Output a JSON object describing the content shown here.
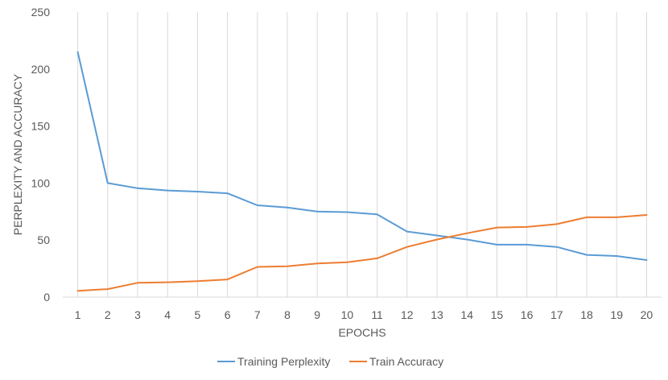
{
  "chart_data": {
    "type": "line",
    "title": "",
    "xlabel": "EPOCHS",
    "ylabel": "PERPLEXITY AND ACCURACY",
    "ylim": [
      0,
      250
    ],
    "yticks": [
      0,
      50,
      100,
      150,
      200,
      250
    ],
    "grid": "vertical",
    "legend": "bottom",
    "categories": [
      "1",
      "2",
      "3",
      "4",
      "5",
      "6",
      "7",
      "8",
      "9",
      "10",
      "11",
      "12",
      "13",
      "14",
      "15",
      "16",
      "17",
      "18",
      "19",
      "20"
    ],
    "series": [
      {
        "name": "Training Perplexity",
        "color": "#5b9bd5",
        "values": [
          215,
          100,
          95.5,
          93.5,
          92.5,
          91,
          80.5,
          78.5,
          75,
          74.5,
          72.5,
          57.5,
          54,
          50.5,
          46,
          46,
          44,
          37,
          36,
          32.5
        ]
      },
      {
        "name": "Train Accuracy",
        "color": "#ed7d31",
        "values": [
          5.5,
          7,
          12.5,
          13,
          14,
          15.5,
          26.5,
          27,
          29.5,
          30.5,
          34,
          44,
          50.5,
          56,
          61,
          61.5,
          64,
          70,
          70,
          72
        ]
      }
    ]
  }
}
